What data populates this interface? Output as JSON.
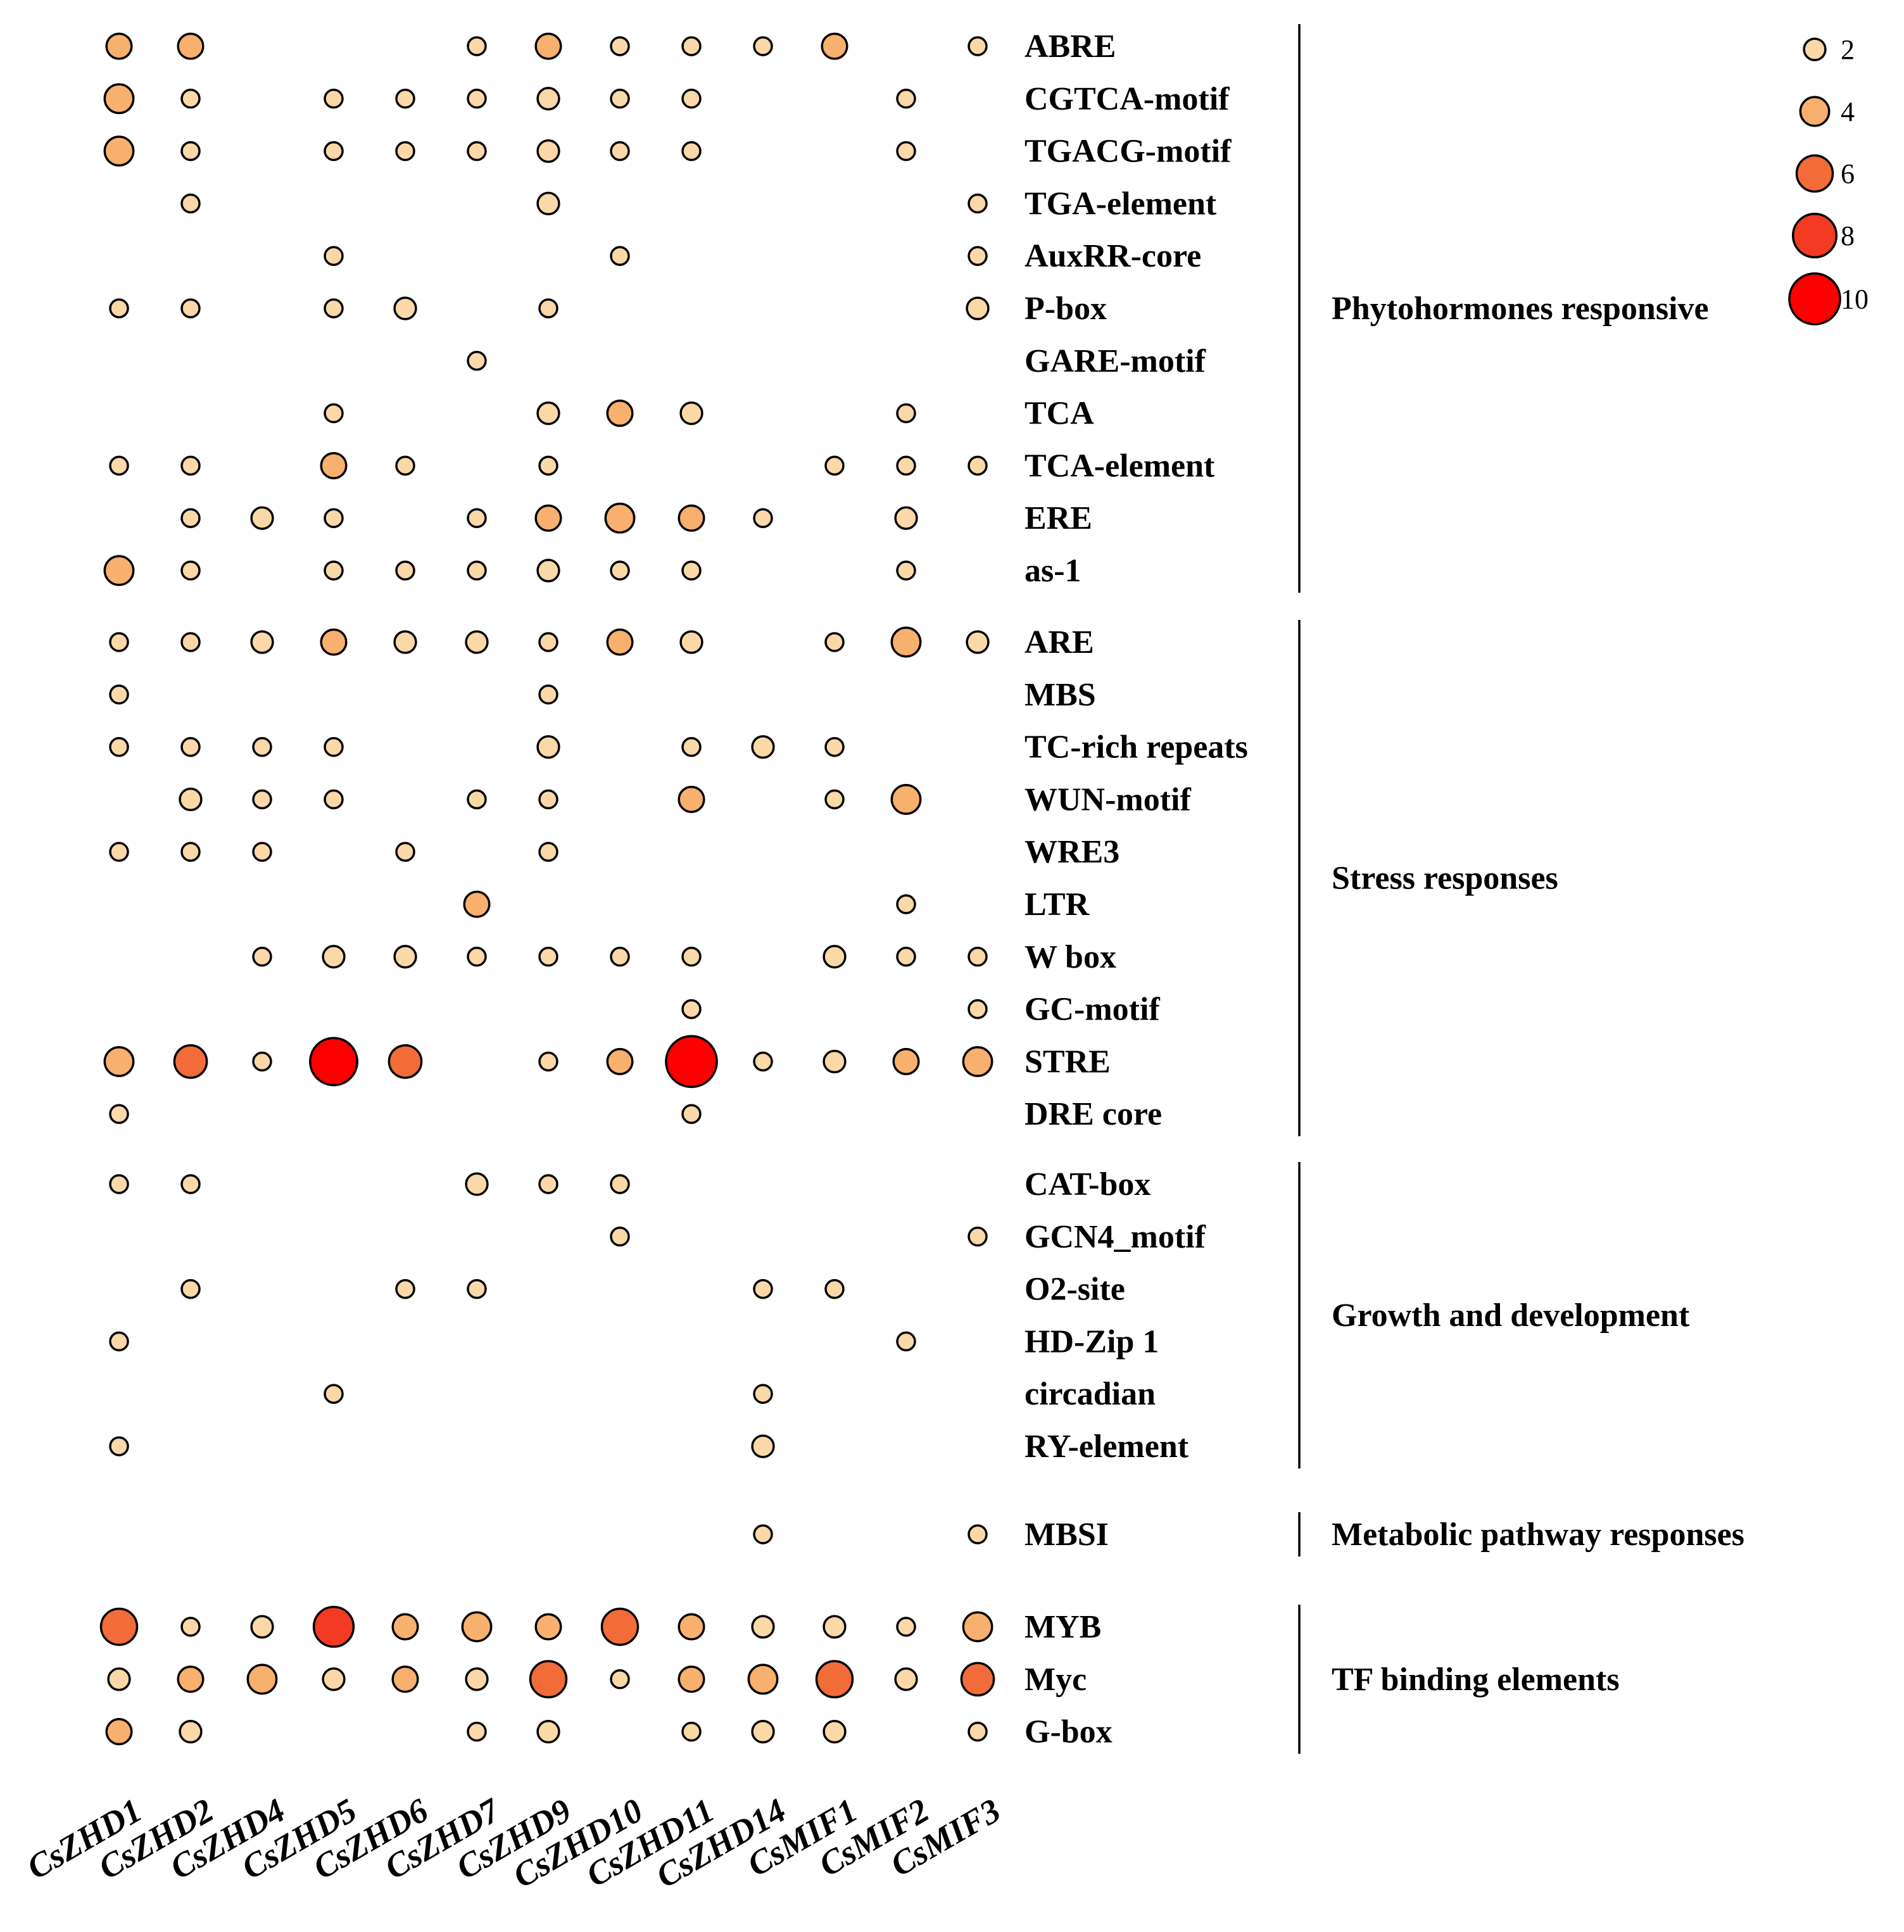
{
  "chart_data": {
    "type": "bubble-matrix",
    "title": "",
    "columns": [
      "CsZHD1",
      "CsZHD2",
      "CsZHD4",
      "CsZHD5",
      "CsZHD6",
      "CsZHD7",
      "CsZHD9",
      "CsZHD10",
      "CsZHD11",
      "CsZHD14",
      "CsMIF1",
      "CsMIF2",
      "CsMIF3"
    ],
    "legend": {
      "values": [
        2,
        4,
        6,
        8,
        10
      ],
      "labels": [
        "2",
        "4",
        "6",
        "8",
        "10"
      ]
    },
    "color_scale": [
      "#fbd8a8",
      "#f7b06d",
      "#f26c3a",
      "#f23b22",
      "#ff0000"
    ],
    "groups": [
      {
        "name": "Phytohormones responsive",
        "rows": [
          {
            "label": "ABRE",
            "values": [
              3,
              3,
              0,
              0,
              0,
              1,
              3,
              1,
              1,
              1,
              3,
              0,
              1
            ]
          },
          {
            "label": "CGTCA-motif",
            "values": [
              4,
              1,
              0,
              1,
              1,
              1,
              2,
              1,
              1,
              0,
              0,
              1,
              0
            ]
          },
          {
            "label": "TGACG-motif",
            "values": [
              4,
              1,
              0,
              1,
              1,
              1,
              2,
              1,
              1,
              0,
              0,
              1,
              0
            ]
          },
          {
            "label": "TGA-element",
            "values": [
              0,
              1,
              0,
              0,
              0,
              0,
              2,
              0,
              0,
              0,
              0,
              0,
              1
            ]
          },
          {
            "label": "AuxRR-core",
            "values": [
              0,
              0,
              0,
              1,
              0,
              0,
              0,
              1,
              0,
              0,
              0,
              0,
              1
            ]
          },
          {
            "label": "P-box",
            "values": [
              1,
              1,
              0,
              1,
              2,
              0,
              1,
              0,
              0,
              0,
              0,
              0,
              2
            ]
          },
          {
            "label": "GARE-motif",
            "values": [
              0,
              0,
              0,
              0,
              0,
              1,
              0,
              0,
              0,
              0,
              0,
              0,
              0
            ]
          },
          {
            "label": "TCA",
            "values": [
              0,
              0,
              0,
              1,
              0,
              0,
              2,
              3,
              2,
              0,
              0,
              1,
              0
            ]
          },
          {
            "label": "TCA-element",
            "values": [
              1,
              1,
              0,
              3,
              1,
              0,
              1,
              0,
              0,
              0,
              1,
              1,
              1
            ]
          },
          {
            "label": "ERE",
            "values": [
              0,
              1,
              2,
              1,
              0,
              1,
              3,
              4,
              3,
              1,
              0,
              2,
              0
            ]
          },
          {
            "label": "as-1",
            "values": [
              4,
              1,
              0,
              1,
              1,
              1,
              2,
              1,
              1,
              0,
              0,
              1,
              0
            ]
          }
        ]
      },
      {
        "name": "Stress responses",
        "rows": [
          {
            "label": "ARE",
            "values": [
              1,
              1,
              2,
              3,
              2,
              2,
              1,
              3,
              2,
              0,
              1,
              4,
              2
            ]
          },
          {
            "label": "MBS",
            "values": [
              1,
              0,
              0,
              0,
              0,
              0,
              1,
              0,
              0,
              0,
              0,
              0,
              0
            ]
          },
          {
            "label": "TC-rich repeats",
            "values": [
              1,
              1,
              1,
              1,
              0,
              0,
              2,
              0,
              1,
              2,
              1,
              0,
              0
            ]
          },
          {
            "label": "WUN-motif",
            "values": [
              0,
              2,
              1,
              1,
              0,
              1,
              1,
              0,
              3,
              0,
              1,
              4,
              0
            ]
          },
          {
            "label": "WRE3",
            "values": [
              1,
              1,
              1,
              0,
              1,
              0,
              1,
              0,
              0,
              0,
              0,
              0,
              0
            ]
          },
          {
            "label": "LTR",
            "values": [
              0,
              0,
              0,
              0,
              0,
              3,
              0,
              0,
              0,
              0,
              0,
              1,
              0
            ]
          },
          {
            "label": "W box",
            "values": [
              0,
              0,
              1,
              2,
              2,
              1,
              1,
              1,
              1,
              0,
              2,
              1,
              1
            ]
          },
          {
            "label": "GC-motif",
            "values": [
              0,
              0,
              0,
              0,
              0,
              0,
              0,
              0,
              1,
              0,
              0,
              0,
              1
            ]
          },
          {
            "label": "STRE",
            "values": [
              4,
              5,
              1,
              9,
              5,
              0,
              1,
              3,
              10,
              1,
              2,
              3,
              4
            ]
          },
          {
            "label": "DRE core",
            "values": [
              1,
              0,
              0,
              0,
              0,
              0,
              0,
              0,
              1,
              0,
              0,
              0,
              0
            ]
          }
        ]
      },
      {
        "name": "Growth and development",
        "rows": [
          {
            "label": "CAT-box",
            "values": [
              1,
              1,
              0,
              0,
              0,
              2,
              1,
              1,
              0,
              0,
              0,
              0,
              0
            ]
          },
          {
            "label": "GCN4_motif",
            "values": [
              0,
              0,
              0,
              0,
              0,
              0,
              0,
              1,
              0,
              0,
              0,
              0,
              1
            ]
          },
          {
            "label": "O2-site",
            "values": [
              0,
              1,
              0,
              0,
              1,
              1,
              0,
              0,
              0,
              1,
              1,
              0,
              0
            ]
          },
          {
            "label": "HD-Zip 1",
            "values": [
              1,
              0,
              0,
              0,
              0,
              0,
              0,
              0,
              0,
              0,
              0,
              1,
              0
            ]
          },
          {
            "label": "circadian",
            "values": [
              0,
              0,
              0,
              1,
              0,
              0,
              0,
              0,
              0,
              1,
              0,
              0,
              0
            ]
          },
          {
            "label": "RY-element",
            "values": [
              1,
              0,
              0,
              0,
              0,
              0,
              0,
              0,
              0,
              2,
              0,
              0,
              0
            ]
          }
        ]
      },
      {
        "name": "Metabolic pathway responses",
        "rows": [
          {
            "label": "MBSI",
            "values": [
              0,
              0,
              0,
              0,
              0,
              0,
              0,
              0,
              0,
              1,
              0,
              0,
              1
            ]
          }
        ]
      },
      {
        "name": "TF binding elements",
        "rows": [
          {
            "label": "MYB",
            "values": [
              6,
              1,
              2,
              7,
              3,
              4,
              3,
              6,
              3,
              2,
              2,
              1,
              4
            ]
          },
          {
            "label": "Myc",
            "values": [
              2,
              3,
              4,
              2,
              3,
              2,
              6,
              1,
              3,
              4,
              6,
              2,
              5
            ]
          },
          {
            "label": "G-box",
            "values": [
              3,
              2,
              0,
              0,
              0,
              1,
              2,
              0,
              1,
              2,
              2,
              0,
              1
            ]
          }
        ]
      }
    ]
  }
}
